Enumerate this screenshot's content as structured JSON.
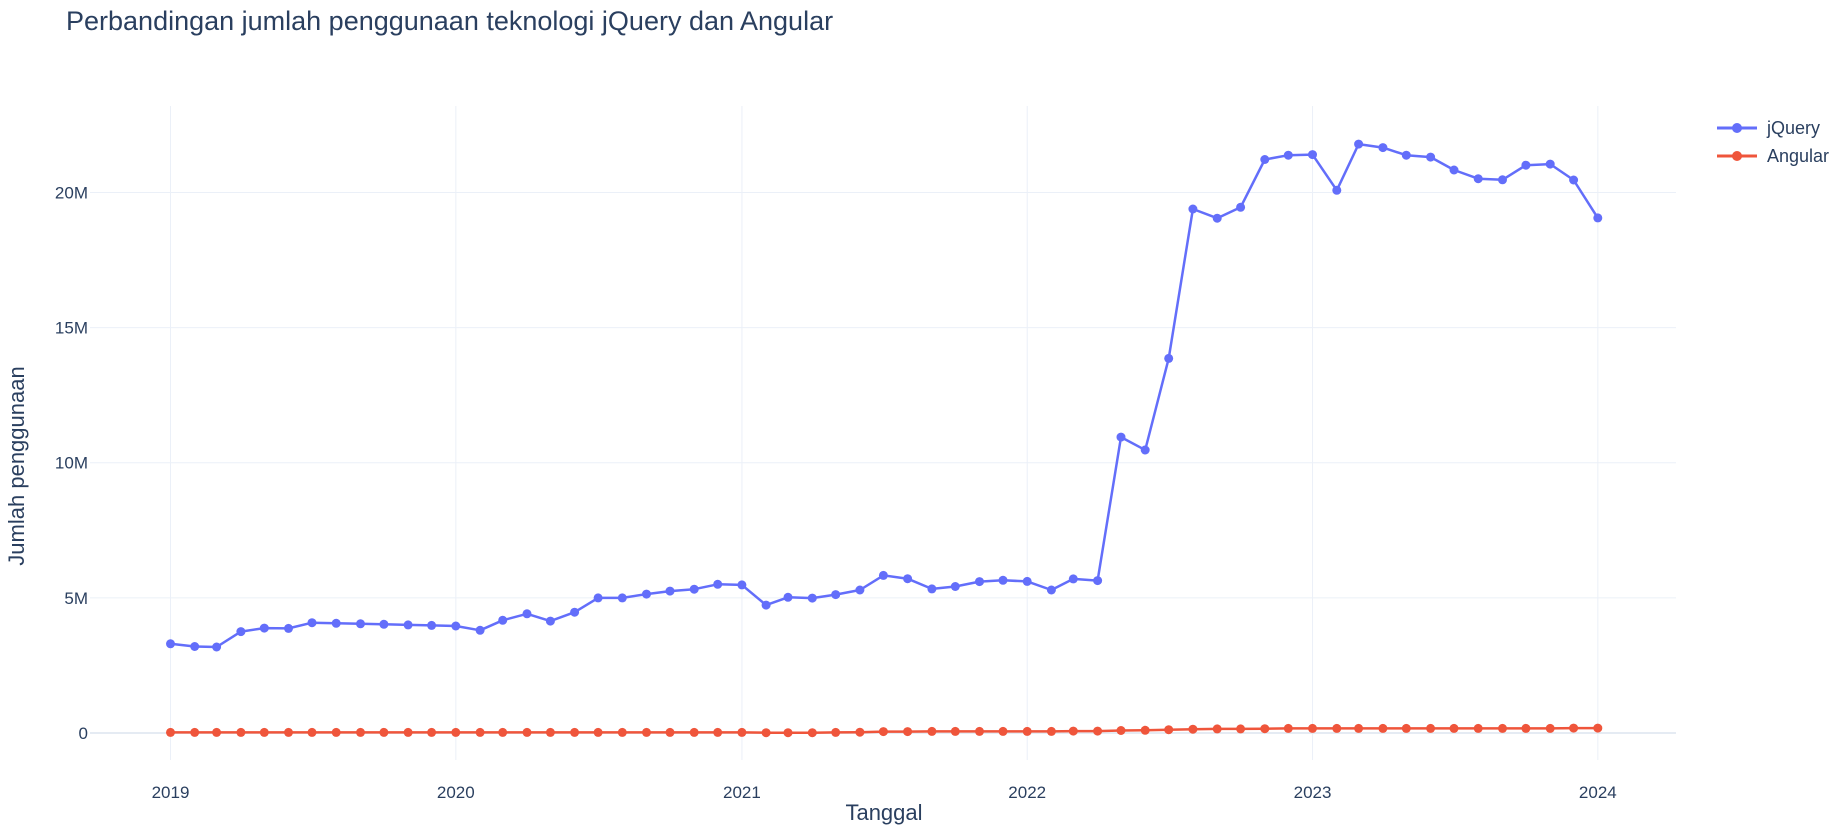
{
  "chart_data": {
    "type": "line",
    "title": "Perbandingan jumlah penggunaan teknologi jQuery dan Angular",
    "xlabel": "Tanggal",
    "ylabel": "Jumlah penggunaan",
    "x_tick_labels": [
      "2019",
      "2020",
      "2021",
      "2022",
      "2023",
      "2024"
    ],
    "y_tick_labels": [
      "0",
      "5M",
      "10M",
      "15M",
      "20M"
    ],
    "y_ticks": [
      0,
      5000000,
      10000000,
      15000000,
      20000000
    ],
    "xlim": [
      "2018-09-20",
      "2024-04-10"
    ],
    "ylim": [
      -1000000,
      23200000
    ],
    "grid": true,
    "legend_position": "top-right",
    "x": [
      "2019-01",
      "2019-02",
      "2019-03",
      "2019-04",
      "2019-05",
      "2019-06",
      "2019-07",
      "2019-08",
      "2019-09",
      "2019-10",
      "2019-11",
      "2019-12",
      "2020-01",
      "2020-02",
      "2020-03",
      "2020-04",
      "2020-05",
      "2020-06",
      "2020-07",
      "2020-08",
      "2020-09",
      "2020-10",
      "2020-11",
      "2020-12",
      "2021-01",
      "2021-02",
      "2021-03",
      "2021-04",
      "2021-05",
      "2021-06",
      "2021-07",
      "2021-08",
      "2021-09",
      "2021-10",
      "2021-11",
      "2021-12",
      "2022-01",
      "2022-02",
      "2022-03",
      "2022-04",
      "2022-05",
      "2022-06",
      "2022-07",
      "2022-08",
      "2022-09",
      "2022-10",
      "2022-11",
      "2022-12",
      "2023-01",
      "2023-02",
      "2023-03",
      "2023-04",
      "2023-05",
      "2023-06",
      "2023-07",
      "2023-08",
      "2023-09",
      "2023-10",
      "2023-11",
      "2023-12",
      "2024-01"
    ],
    "series": [
      {
        "name": "jQuery",
        "color": "#636efa",
        "values": [
          3300000,
          3200000,
          3180000,
          3750000,
          3880000,
          3870000,
          4080000,
          4060000,
          4040000,
          4020000,
          4000000,
          3980000,
          3960000,
          3800000,
          4170000,
          4410000,
          4140000,
          4470000,
          5000000,
          5000000,
          5140000,
          5250000,
          5320000,
          5500000,
          5480000,
          4730000,
          5020000,
          4990000,
          5120000,
          5290000,
          5830000,
          5710000,
          5330000,
          5420000,
          5600000,
          5650000,
          5610000,
          5290000,
          5700000,
          5640000,
          10950000,
          10470000,
          13860000,
          19390000,
          19050000,
          19450000,
          21220000,
          21380000,
          21400000,
          20080000,
          21790000,
          21660000,
          21380000,
          21310000,
          20830000,
          20510000,
          20470000,
          21010000,
          21050000,
          20460000,
          19060000
        ]
      },
      {
        "name": "Angular",
        "color": "#ef553b",
        "values": [
          20000,
          20000,
          20000,
          20000,
          20000,
          20000,
          20000,
          20000,
          20000,
          20000,
          20000,
          20000,
          20000,
          20000,
          20000,
          20000,
          20000,
          20000,
          20000,
          20000,
          20000,
          20000,
          20000,
          20000,
          20000,
          10000,
          10000,
          10000,
          20000,
          30000,
          50000,
          50000,
          60000,
          60000,
          60000,
          60000,
          60000,
          60000,
          70000,
          70000,
          90000,
          100000,
          120000,
          140000,
          150000,
          150000,
          160000,
          170000,
          170000,
          170000,
          170000,
          170000,
          170000,
          170000,
          170000,
          170000,
          170000,
          170000,
          170000,
          180000,
          180000
        ]
      }
    ]
  }
}
